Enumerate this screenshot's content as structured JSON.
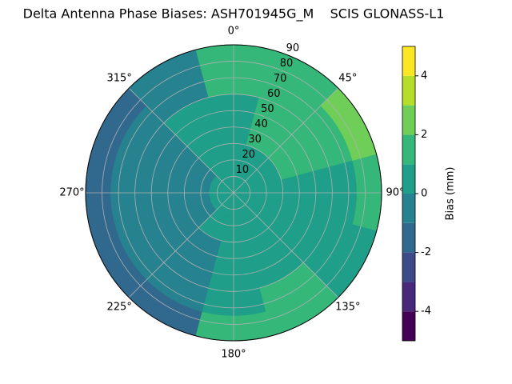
{
  "chart_data": {
    "type": "polar_contour",
    "title": "Delta Antenna Phase Biases: ASH701945G_M    SCIS GLONASS-L1",
    "colorbar_label": "Bias (mm)",
    "azimuth": [
      0,
      30,
      60,
      90,
      120,
      150,
      180,
      210,
      240,
      270,
      300,
      330
    ],
    "r": [
      7.5,
      22.5,
      37.5,
      52.5,
      67.5,
      82.5
    ],
    "values": [
      [
        0.5,
        0.5,
        0.5,
        0.5,
        0.5,
        0.5,
        0.5,
        0.5,
        0.5,
        0.5,
        0.5,
        0.5
      ],
      [
        0.5,
        0.6,
        0.6,
        0.5,
        0.4,
        0.3,
        0.3,
        0.2,
        -0.2,
        -0.3,
        -0.2,
        0.3
      ],
      [
        0.7,
        1.0,
        1.1,
        0.8,
        0.6,
        0.5,
        0.3,
        -0.2,
        -0.4,
        -0.5,
        -0.4,
        0.2
      ],
      [
        0.9,
        1.4,
        1.4,
        0.9,
        0.6,
        0.7,
        0.4,
        -0.3,
        -0.6,
        -0.7,
        -0.6,
        0.0
      ],
      [
        1.2,
        1.6,
        1.8,
        0.9,
        0.8,
        1.0,
        0.5,
        -0.5,
        -0.8,
        -0.9,
        -0.8,
        -0.3
      ],
      [
        1.1,
        1.7,
        2.5,
        1.2,
        0.6,
        1.3,
        1.2,
        -1.2,
        -1.5,
        -1.2,
        -1.3,
        -0.8
      ]
    ],
    "rlim": [
      0,
      90
    ],
    "rticks": [
      10,
      20,
      30,
      40,
      50,
      60,
      70,
      80,
      90
    ],
    "angle_ticks": [
      {
        "value": 0,
        "label": "0°"
      },
      {
        "value": 45,
        "label": "45°"
      },
      {
        "value": 90,
        "label": "90°"
      },
      {
        "value": 135,
        "label": "135°"
      },
      {
        "value": 180,
        "label": "180°"
      },
      {
        "value": 225,
        "label": "225°"
      },
      {
        "value": 270,
        "label": "270°"
      },
      {
        "value": 315,
        "label": "315°"
      }
    ],
    "levels": [
      -5,
      -4,
      -3,
      -2,
      -1,
      0,
      1,
      2,
      3,
      4,
      5
    ],
    "colors": [
      "#440154",
      "#482878",
      "#3e4989",
      "#31688e",
      "#26828e",
      "#1f9e89",
      "#35b779",
      "#6ece58",
      "#b5de2b",
      "#fde725"
    ],
    "clim": [
      -5,
      5
    ],
    "cticks": [
      -4,
      -2,
      0,
      2,
      4
    ],
    "grid": true
  }
}
